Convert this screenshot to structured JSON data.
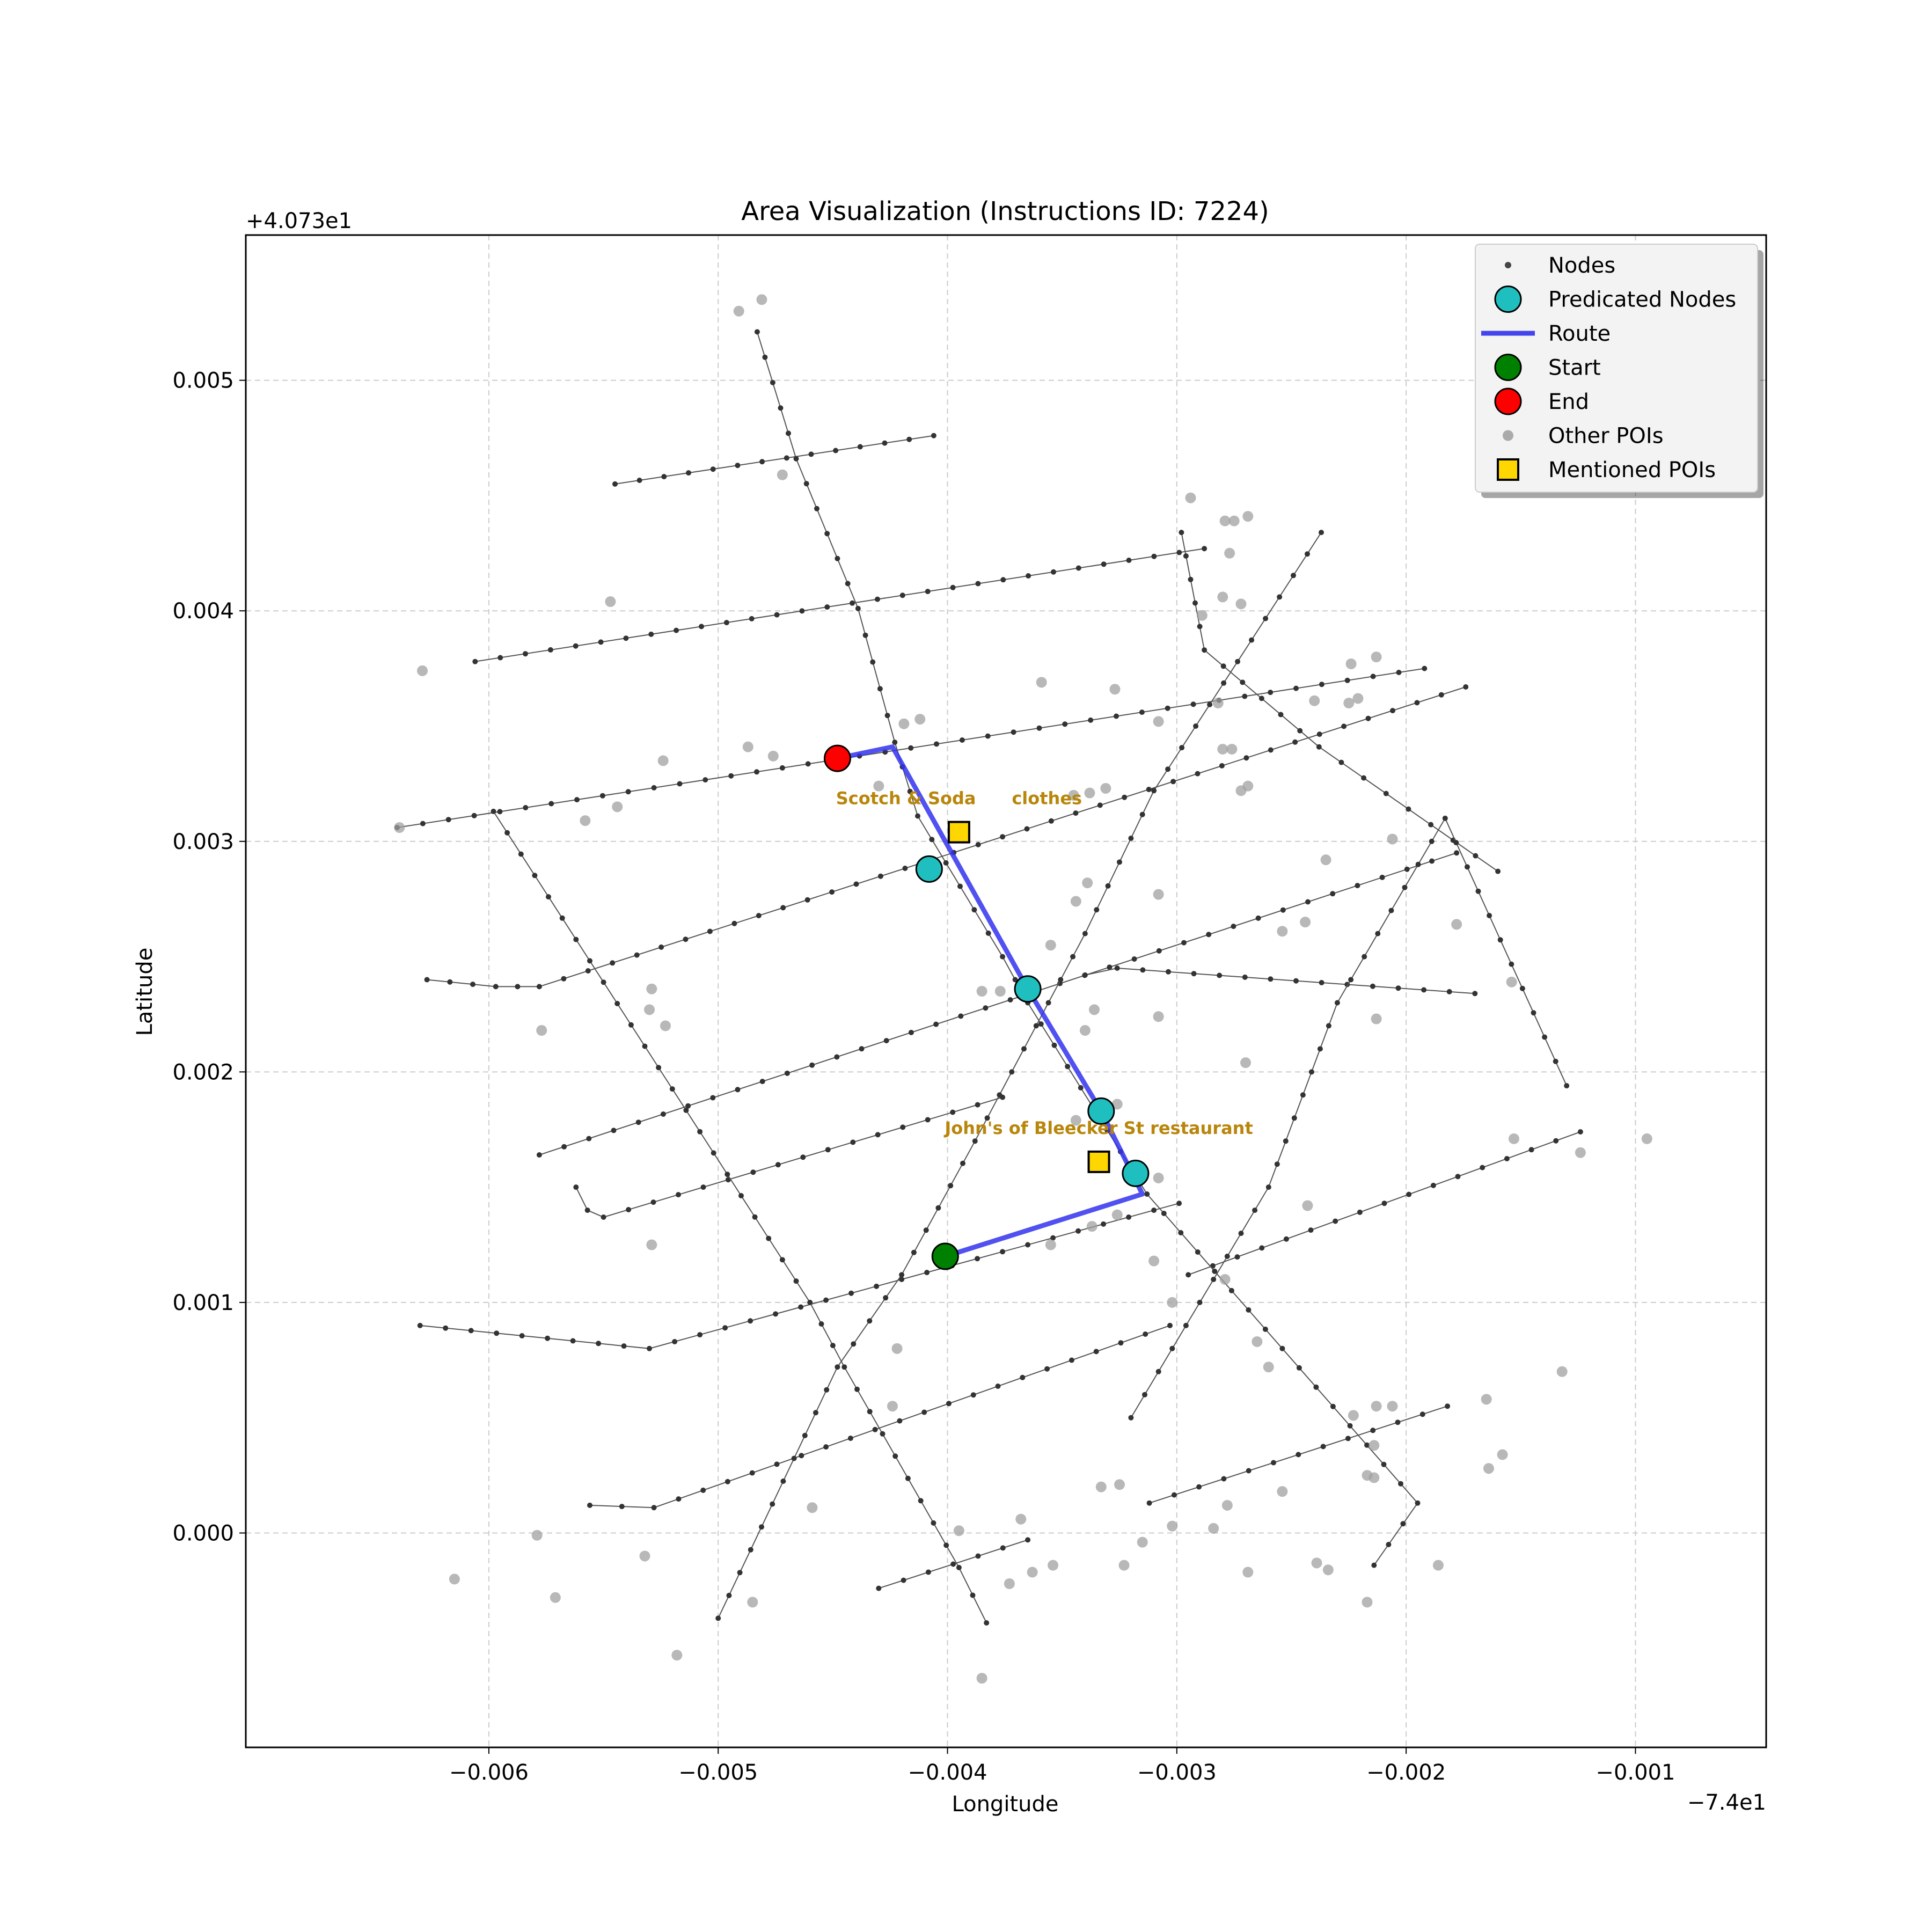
{
  "title": "Area Visualization (Instructions ID: 7224)",
  "chart_data": {
    "type": "map",
    "xlabel": "Longitude",
    "ylabel": "Latitude",
    "x_offset_label": "−7.4e1",
    "y_offset_label": "+4.073e1",
    "x_offset": -74.0,
    "y_offset": 40.73,
    "xlim": [
      -0.00706,
      -0.00043
    ],
    "ylim": [
      -0.00093,
      0.00563
    ],
    "grid": true,
    "x_ticks": [
      -0.006,
      -0.005,
      -0.004,
      -0.003,
      -0.002,
      -0.001
    ],
    "x_tick_labels": [
      "−0.006",
      "−0.005",
      "−0.004",
      "−0.003",
      "−0.002",
      "−0.001"
    ],
    "y_ticks": [
      0.0,
      0.001,
      0.002,
      0.003,
      0.004,
      0.005
    ],
    "y_tick_labels": [
      "0.000",
      "0.001",
      "0.002",
      "0.003",
      "0.004",
      "0.005"
    ],
    "legend": {
      "placement": "top-right",
      "entries": [
        {
          "label": "Nodes",
          "marker": "small-dot",
          "color": "#444444"
        },
        {
          "label": "Predicated Nodes",
          "marker": "circle",
          "color": "#1fbfbf"
        },
        {
          "label": "Route",
          "marker": "line",
          "color": "#4444ee"
        },
        {
          "label": "Start",
          "marker": "circle",
          "color": "#008000"
        },
        {
          "label": "End",
          "marker": "circle",
          "color": "#ff0000"
        },
        {
          "label": "Other POIs",
          "marker": "dot",
          "color": "#aaaaaa"
        },
        {
          "label": "Mentioned POIs",
          "marker": "square",
          "color": "#ffd700"
        }
      ]
    },
    "streets": [
      [
        [
          -0.00545,
          0.00455
        ],
        [
          -0.00406,
          0.00476
        ]
      ],
      [
        [
          -0.00606,
          0.00378
        ],
        [
          -0.00288,
          0.00427
        ]
      ],
      [
        [
          -0.0064,
          0.00306
        ],
        [
          -0.00192,
          0.00375
        ]
      ],
      [
        [
          -0.00627,
          0.0024
        ],
        [
          -0.00597,
          0.00237
        ],
        [
          -0.00578,
          0.00237
        ],
        [
          -0.00174,
          0.00367
        ]
      ],
      [
        [
          -0.00578,
          0.00164
        ],
        [
          -0.00178,
          0.00295
        ]
      ],
      [
        [
          -0.00562,
          0.0015
        ],
        [
          -0.00557,
          0.0014
        ],
        [
          -0.0055,
          0.00137
        ],
        [
          -0.00376,
          0.00189
        ]
      ],
      [
        [
          -0.0034,
          0.00242
        ],
        [
          -0.00326,
          0.00245
        ],
        [
          -0.0017,
          0.00234
        ]
      ],
      [
        [
          -0.0063,
          0.0009
        ],
        [
          -0.0053,
          0.0008
        ],
        [
          -0.00299,
          0.00143
        ]
      ],
      [
        [
          -0.00295,
          0.00112
        ],
        [
          -0.00124,
          0.00174
        ]
      ],
      [
        [
          -0.00556,
          0.00012
        ],
        [
          -0.00528,
          0.00011
        ],
        [
          -0.00303,
          0.0009
        ]
      ],
      [
        [
          -0.00312,
          0.00013
        ],
        [
          -0.00182,
          0.00055
        ]
      ],
      [
        [
          -0.0043,
          -0.00024
        ],
        [
          -0.00365,
          -3e-05
        ]
      ],
      [
        [
          -0.00483,
          0.00521
        ],
        [
          -0.00466,
          0.00466
        ],
        [
          -0.00439,
          0.00401
        ],
        [
          -0.00423,
          0.00343
        ],
        [
          -0.00413,
          0.00311
        ],
        [
          -0.00376,
          0.0025
        ],
        [
          -0.00365,
          0.0023
        ],
        [
          -0.00313,
          0.00147
        ],
        [
          -0.00195,
          0.00013
        ],
        [
          -0.00214,
          -0.00014
        ]
      ],
      [
        [
          -0.00598,
          0.00313
        ],
        [
          -0.0046,
          0.001
        ],
        [
          -0.00445,
          0.00072
        ],
        [
          -0.00395,
          -0.00015
        ],
        [
          -0.00383,
          -0.00039
        ]
      ],
      [
        [
          -0.005,
          -0.00037
        ],
        [
          -0.00448,
          0.00072
        ],
        [
          -0.0042,
          0.00112
        ],
        [
          -0.00388,
          0.0017
        ],
        [
          -0.0034,
          0.0026
        ],
        [
          -0.0031,
          0.00322
        ],
        [
          -0.00237,
          0.00434
        ]
      ],
      [
        [
          -0.00298,
          0.00434
        ],
        [
          -0.00288,
          0.00383
        ],
        [
          -0.00238,
          0.00341
        ],
        [
          -0.0016,
          0.00287
        ]
      ],
      [
        [
          -0.0032,
          0.0005
        ],
        [
          -0.0026,
          0.0015
        ],
        [
          -0.0023,
          0.0023
        ],
        [
          -0.00183,
          0.0031
        ],
        [
          -0.0013,
          0.00194
        ]
      ]
    ],
    "route": [
      [
        -0.00401,
        0.0012
      ],
      [
        -0.00315,
        0.00147
      ],
      [
        -0.00333,
        0.00183
      ],
      [
        -0.00365,
        0.00236
      ],
      [
        -0.00424,
        0.00341
      ],
      [
        -0.00448,
        0.00336
      ]
    ],
    "predicated_nodes": [
      [
        -0.00408,
        0.00288
      ],
      [
        -0.00365,
        0.00236
      ],
      [
        -0.00333,
        0.00183
      ],
      [
        -0.00318,
        0.00156
      ]
    ],
    "start": [
      -0.00401,
      0.0012
    ],
    "end": [
      -0.00448,
      0.00336
    ],
    "other_pois": [
      [
        -0.00491,
        0.0053
      ],
      [
        -0.00481,
        0.00535
      ],
      [
        -0.00472,
        0.00459
      ],
      [
        -0.00547,
        0.00404
      ],
      [
        -0.00629,
        0.00374
      ],
      [
        -0.00524,
        0.00335
      ],
      [
        -0.00544,
        0.00315
      ],
      [
        -0.00558,
        0.00309
      ],
      [
        -0.00487,
        0.00341
      ],
      [
        -0.00476,
        0.00337
      ],
      [
        -0.00419,
        0.00351
      ],
      [
        -0.00412,
        0.00353
      ],
      [
        -0.0043,
        0.00324
      ],
      [
        -0.00359,
        0.00369
      ],
      [
        -0.00327,
        0.00366
      ],
      [
        -0.00308,
        0.00352
      ],
      [
        -0.00345,
        0.0032
      ],
      [
        -0.00338,
        0.00321
      ],
      [
        -0.00331,
        0.00323
      ],
      [
        -0.00339,
        0.00282
      ],
      [
        -0.00344,
        0.00274
      ],
      [
        -0.00355,
        0.00255
      ],
      [
        -0.00377,
        0.00235
      ],
      [
        -0.00385,
        0.00235
      ],
      [
        -0.0034,
        0.00218
      ],
      [
        -0.00336,
        0.00227
      ],
      [
        -0.00308,
        0.00224
      ],
      [
        -0.00308,
        0.00277
      ],
      [
        -0.00529,
        0.00236
      ],
      [
        -0.0053,
        0.00227
      ],
      [
        -0.00523,
        0.0022
      ],
      [
        -0.00577,
        0.00218
      ],
      [
        -0.00529,
        0.00125
      ],
      [
        -0.00355,
        0.00125
      ],
      [
        -0.00337,
        0.00133
      ],
      [
        -0.00344,
        0.00179
      ],
      [
        -0.0033,
        0.00184
      ],
      [
        -0.00326,
        0.00186
      ],
      [
        -0.00308,
        0.00154
      ],
      [
        -0.0031,
        0.00118
      ],
      [
        -0.00326,
        0.00138
      ],
      [
        -0.00302,
        0.001
      ],
      [
        -0.00294,
        0.00449
      ],
      [
        -0.00279,
        0.00439
      ],
      [
        -0.00275,
        0.00439
      ],
      [
        -0.00269,
        0.00441
      ],
      [
        -0.00277,
        0.00425
      ],
      [
        -0.00289,
        0.00398
      ],
      [
        -0.0028,
        0.00406
      ],
      [
        -0.00272,
        0.00403
      ],
      [
        -0.00282,
        0.0036
      ],
      [
        -0.0028,
        0.0034
      ],
      [
        -0.00276,
        0.0034
      ],
      [
        -0.00272,
        0.00322
      ],
      [
        -0.00269,
        0.00324
      ],
      [
        -0.0024,
        0.00361
      ],
      [
        -0.00225,
        0.0036
      ],
      [
        -0.00224,
        0.00377
      ],
      [
        -0.00221,
        0.00362
      ],
      [
        -0.00213,
        0.0038
      ],
      [
        -0.00235,
        0.00292
      ],
      [
        -0.00206,
        0.00301
      ],
      [
        -0.00254,
        0.00261
      ],
      [
        -0.00244,
        0.00265
      ],
      [
        -0.00178,
        0.00264
      ],
      [
        -0.00154,
        0.00239
      ],
      [
        -0.00213,
        0.00223
      ],
      [
        -0.0027,
        0.00204
      ],
      [
        -0.00153,
        0.00171
      ],
      [
        -0.00124,
        0.00165
      ],
      [
        -0.00095,
        0.00171
      ],
      [
        -0.00243,
        0.00142
      ],
      [
        -0.00279,
        0.0011
      ],
      [
        -0.00265,
        0.00083
      ],
      [
        -0.0026,
        0.00072
      ],
      [
        -0.00132,
        0.0007
      ],
      [
        -0.00223,
        0.00051
      ],
      [
        -0.00213,
        0.00055
      ],
      [
        -0.00206,
        0.00055
      ],
      [
        -0.00165,
        0.00058
      ],
      [
        -0.00214,
        0.00038
      ],
      [
        -0.00158,
        0.00034
      ],
      [
        -0.00164,
        0.00028
      ],
      [
        -0.00217,
        0.00025
      ],
      [
        -0.00214,
        0.00024
      ],
      [
        -0.00254,
        0.00018
      ],
      [
        -0.00278,
        0.00012
      ],
      [
        -0.00302,
        3e-05
      ],
      [
        -0.00284,
        2e-05
      ],
      [
        -0.00239,
        -0.00013
      ],
      [
        -0.00234,
        -0.00016
      ],
      [
        -0.00269,
        -0.00017
      ],
      [
        -0.00217,
        -0.0003
      ],
      [
        -0.00186,
        -0.00014
      ],
      [
        -0.00315,
        -4e-05
      ],
      [
        -0.00323,
        -0.00014
      ],
      [
        -0.00333,
        0.0002
      ],
      [
        -0.00325,
        0.00021
      ],
      [
        -0.00354,
        -0.00014
      ],
      [
        -0.00363,
        -0.00017
      ],
      [
        -0.00373,
        -0.00022
      ],
      [
        -0.00368,
        6e-05
      ],
      [
        -0.00395,
        1e-05
      ],
      [
        -0.00385,
        -0.00063
      ],
      [
        -0.00422,
        0.0008
      ],
      [
        -0.00424,
        0.00055
      ],
      [
        -0.00459,
        0.00011
      ],
      [
        -0.00485,
        -0.0003
      ],
      [
        -0.00518,
        -0.00053
      ],
      [
        -0.00532,
        -0.0001
      ],
      [
        -0.00579,
        -1e-05
      ],
      [
        -0.00571,
        -0.00028
      ],
      [
        -0.00615,
        -0.0002
      ],
      [
        -0.00639,
        0.00306
      ]
    ],
    "mentioned_pois": [
      {
        "name": "Scotch & Soda",
        "category": "clothes",
        "label": "Scotch & Soda      clothes",
        "position": [
          -0.00395,
          0.00304
        ]
      },
      {
        "name": "John's of Bleecker St",
        "category": "restaurant",
        "label": "John's of Bleecker St restaurant",
        "position": [
          -0.00334,
          0.00161
        ]
      }
    ],
    "colors": {
      "street": "#555555",
      "node": "#333333",
      "route": "#3333ee",
      "predicated": "#1fbfbf",
      "start": "#008000",
      "end": "#ff0000",
      "other_poi": "#a0a0a0",
      "mentioned_poi": "#ffd700",
      "poi_label": "#b8860b"
    }
  }
}
